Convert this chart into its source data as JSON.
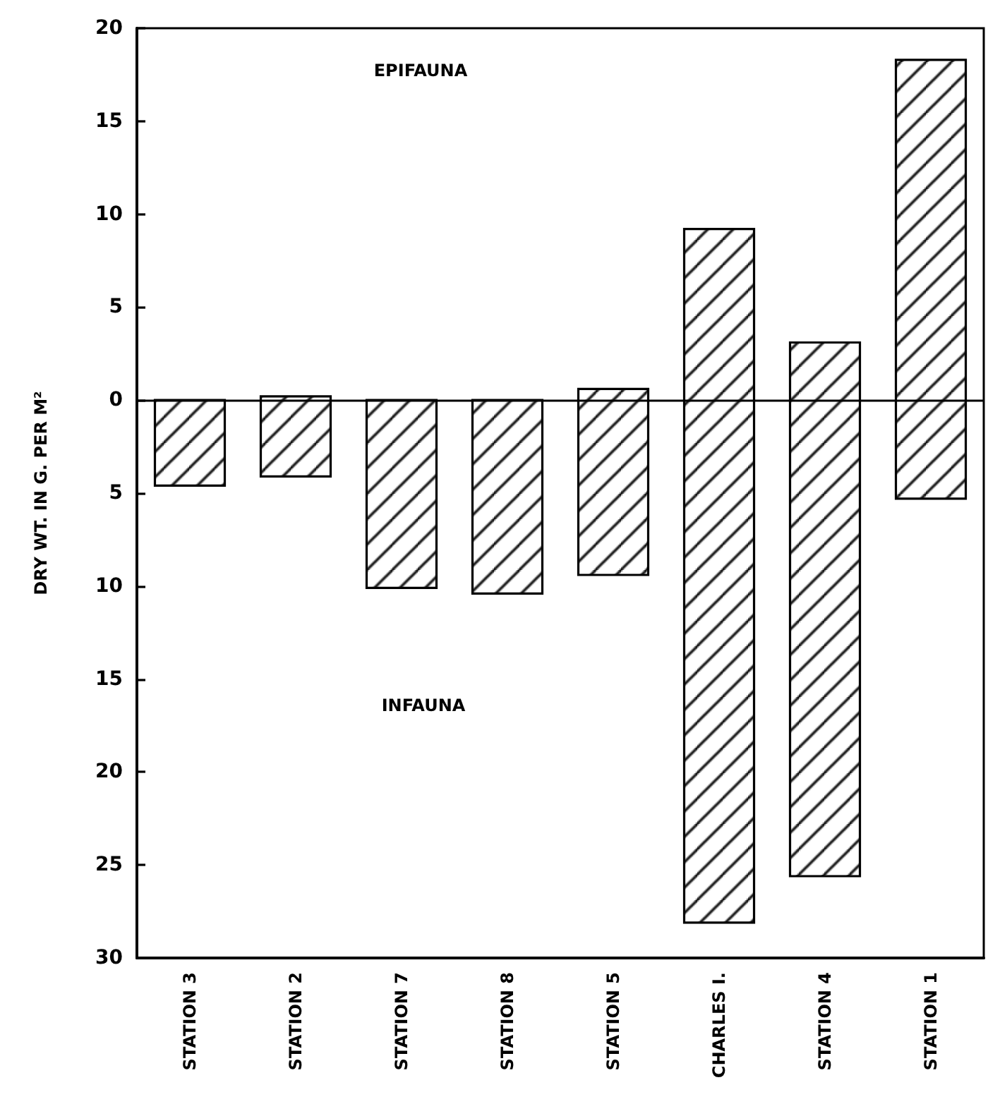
{
  "chart_data": {
    "type": "bar",
    "categories": [
      "STATION 3",
      "STATION 2",
      "STATION 7",
      "STATION 8",
      "STATION 5",
      "CHARLES I.",
      "STATION 4",
      "STATION 1"
    ],
    "base": [
      -4.6,
      -4.1,
      -10.1,
      -10.4,
      -9.4,
      -28.1,
      -25.6,
      -5.3
    ],
    "values": [
      4.6,
      4.3,
      10.1,
      10.4,
      10.0,
      37.3,
      28.7,
      23.6
    ],
    "color": "#000000",
    "ylabel": "DRY WT. IN G. PER M²",
    "ylim": [
      -30,
      20
    ],
    "yticks": [
      {
        "value": -30,
        "label": "30"
      },
      {
        "value": -25,
        "label": "25"
      },
      {
        "value": -20,
        "label": "20"
      },
      {
        "value": -15,
        "label": "15"
      },
      {
        "value": -10,
        "label": "10"
      },
      {
        "value": -5,
        "label": "5"
      },
      0,
      5,
      10,
      15,
      20
    ],
    "ref_lines": [
      {
        "axis": "y",
        "value": 0
      }
    ],
    "annotations": [
      "EPIFAUNA",
      "INFAUNA"
    ]
  }
}
